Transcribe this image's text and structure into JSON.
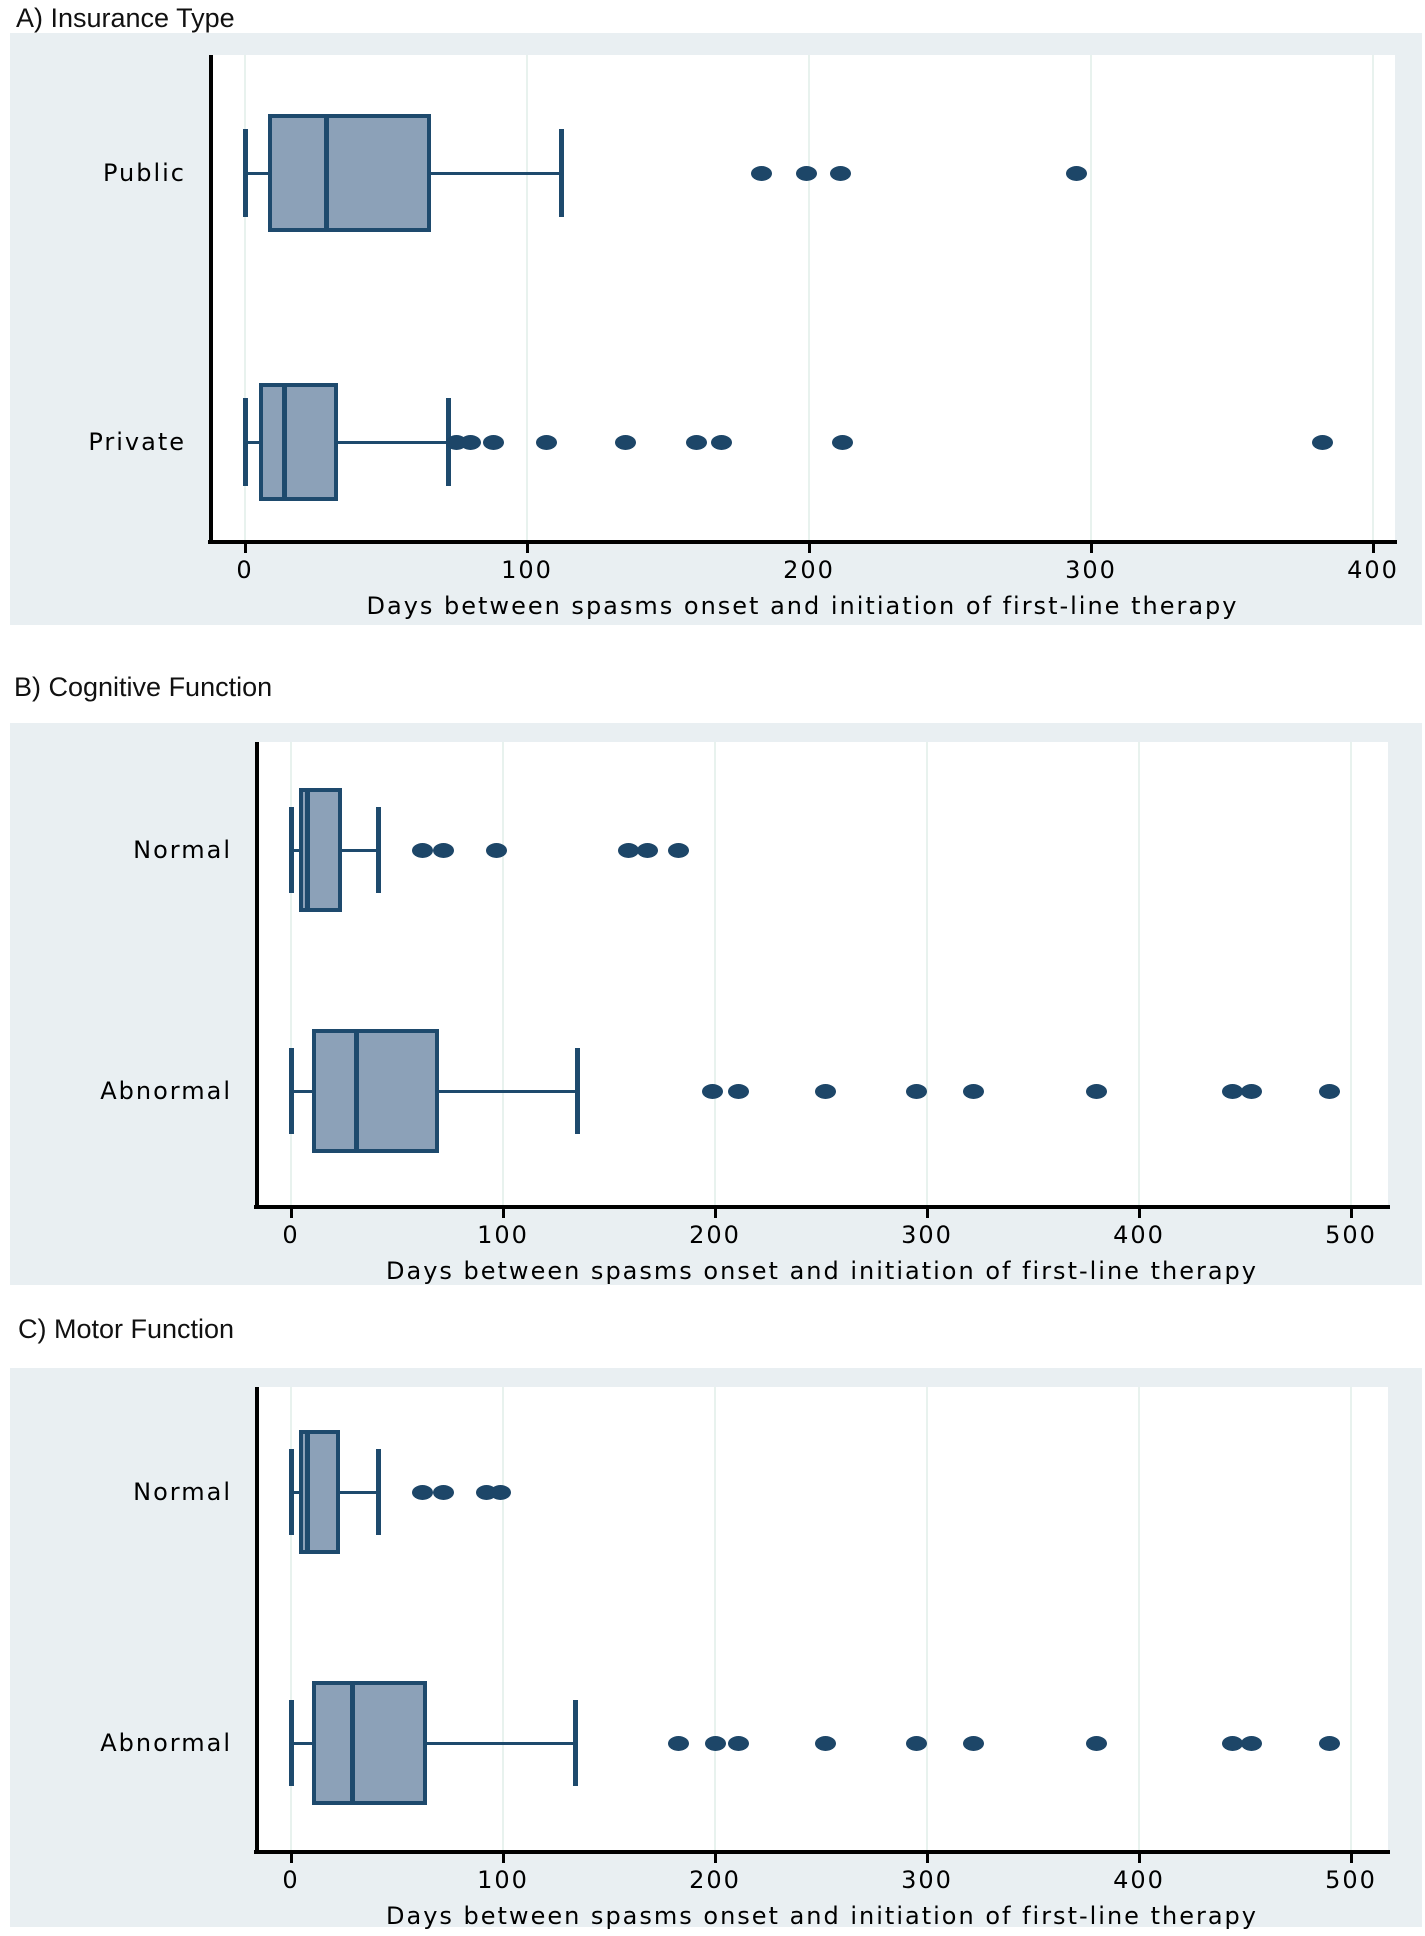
{
  "colors": {
    "figure_bg": "#e9eff2",
    "plot_bg": "#ffffff",
    "gridline": "#e8f2ee",
    "box_fill": "#8ca1b8",
    "box_border": "#1e4a6d",
    "outlier_dot": "#1d4668",
    "axis_line": "#000000"
  },
  "chart_data": [
    {
      "type": "boxplot",
      "orientation": "horizontal",
      "title": "A) Insurance Type",
      "xlabel": "Days between spasms onset and initiation of first-line therapy",
      "xlim": [
        0,
        400
      ],
      "xticks": [
        0,
        100,
        200,
        300,
        400
      ],
      "grid": true,
      "categories": [
        "Public",
        "Private"
      ],
      "boxes": [
        {
          "label": "Public",
          "whisker_low": 0,
          "q1": 8,
          "median": 29,
          "q3": 66,
          "whisker_high": 112,
          "outliers": [
            183,
            199,
            211,
            295
          ]
        },
        {
          "label": "Private",
          "whisker_low": 0,
          "q1": 5,
          "median": 14,
          "q3": 33,
          "whisker_high": 72,
          "outliers": [
            75,
            80,
            88,
            107,
            135,
            160,
            169,
            212,
            382
          ]
        }
      ]
    },
    {
      "type": "boxplot",
      "orientation": "horizontal",
      "title": "B) Cognitive Function",
      "xlabel": "Days between spasms onset and initiation of first-line therapy",
      "xlim": [
        0,
        500
      ],
      "xticks": [
        0,
        100,
        200,
        300,
        400,
        500
      ],
      "grid": true,
      "categories": [
        "Normal",
        "Abnormal"
      ],
      "boxes": [
        {
          "label": "Normal",
          "whisker_low": 0,
          "q1": 4,
          "median": 8,
          "q3": 24,
          "whisker_high": 41,
          "outliers": [
            62,
            72,
            97,
            159,
            168,
            183
          ]
        },
        {
          "label": "Abnormal",
          "whisker_low": 0,
          "q1": 10,
          "median": 31,
          "q3": 70,
          "whisker_high": 135,
          "outliers": [
            199,
            211,
            252,
            295,
            322,
            380,
            444,
            453,
            490
          ]
        }
      ]
    },
    {
      "type": "boxplot",
      "orientation": "horizontal",
      "title": "C) Motor Function",
      "xlabel": "Days between spasms onset and initiation of first-line therapy",
      "xlim": [
        0,
        500
      ],
      "xticks": [
        0,
        100,
        200,
        300,
        400,
        500
      ],
      "grid": true,
      "categories": [
        "Normal",
        "Abnormal"
      ],
      "boxes": [
        {
          "label": "Normal",
          "whisker_low": 0,
          "q1": 4,
          "median": 8,
          "q3": 23,
          "whisker_high": 41,
          "outliers": [
            62,
            72,
            92,
            99
          ]
        },
        {
          "label": "Abnormal",
          "whisker_low": 0,
          "q1": 10,
          "median": 29,
          "q3": 64,
          "whisker_high": 134,
          "outliers": [
            183,
            200,
            211,
            252,
            295,
            322,
            380,
            444,
            453,
            490
          ]
        }
      ]
    }
  ]
}
